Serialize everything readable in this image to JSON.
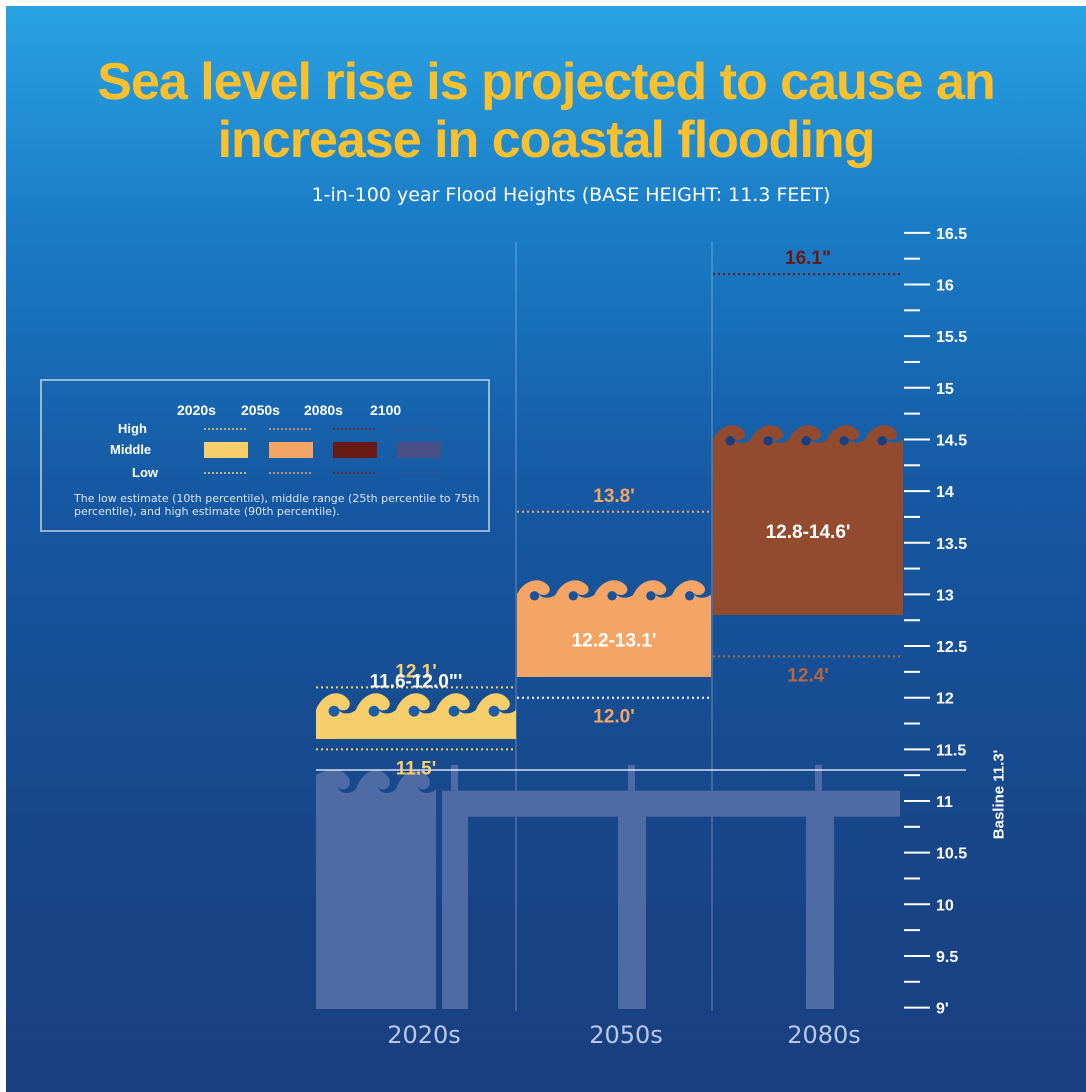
{
  "title_line1": "Sea level rise is projected to cause an",
  "title_line2": "increase in coastal flooding",
  "subtitle": "1-in-100 year Flood Heights  (BASE HEIGHT: 11.3 FEET)",
  "legend": {
    "columns": [
      "2020s",
      "2050s",
      "2080s",
      "2100"
    ],
    "rows": [
      "High",
      "Middle",
      "Low"
    ],
    "note": "The low estimate (10th percentile), middle range (25th percentile to 75th percentile), and high estimate (90th percentile).",
    "colors": [
      "#f6cf6b",
      "#f4a565",
      "#6a1a14",
      "#4a4f85"
    ]
  },
  "colors": {
    "2020s": "#f6cf6b",
    "2050s": "#f4a565",
    "2080s": "#934b2f",
    "high_2080s": "#6a1a14",
    "low_2080s": "#b3673f",
    "pier": "#4f6ba6"
  },
  "chart_data": {
    "type": "bar",
    "title": "Sea level rise is projected to cause an increase in coastal flooding",
    "subtitle": "1-in-100 year Flood Heights  (BASE HEIGHT: 11.3 FEET)",
    "categories": [
      "2020s",
      "2050s",
      "2080s"
    ],
    "ylabel": "Basline 11.3'",
    "ylim": [
      9,
      16.5
    ],
    "yticks": [
      "9'",
      "9.5",
      "10",
      "10.5",
      "11",
      "11.5",
      "12",
      "12.5",
      "13",
      "13.5",
      "14",
      "14.5",
      "15",
      "15.5",
      "16",
      "16.5"
    ],
    "baseline": 11.3,
    "series": [
      {
        "name": "2020s",
        "low": 11.5,
        "mid_low": 11.6,
        "mid_high": 12.0,
        "high": 12.1,
        "range_label": "11.6-12.0\"'",
        "low_label": "11.5'",
        "high_label": "12.1'"
      },
      {
        "name": "2050s",
        "low": 12.0,
        "mid_low": 12.2,
        "mid_high": 13.1,
        "high": 13.8,
        "range_label": "12.2-13.1'",
        "low_label": "12.0'",
        "high_label": "13.8'"
      },
      {
        "name": "2080s",
        "low": 12.4,
        "mid_low": 12.8,
        "mid_high": 14.6,
        "high": 16.1,
        "range_label": "12.8-14.6'",
        "low_label": "12.4'",
        "high_label": "16.1\""
      }
    ],
    "grid": false
  }
}
